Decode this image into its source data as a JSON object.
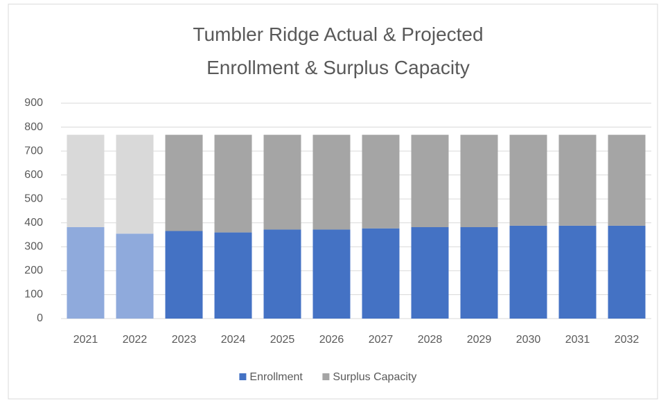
{
  "chart_data": {
    "type": "stacked_bar",
    "title": "Tumbler Ridge Actual & Projected Enrollment & Surplus Capacity",
    "categories": [
      "2021",
      "2022",
      "2023",
      "2024",
      "2025",
      "2026",
      "2027",
      "2028",
      "2029",
      "2030",
      "2031",
      "2032"
    ],
    "series": [
      {
        "name": "Enrollment",
        "color": "#4472c4",
        "colors": [
          "#8faadc",
          "#8faadc",
          "#4472c4",
          "#4472c4",
          "#4472c4",
          "#4472c4",
          "#4472c4",
          "#4472c4",
          "#4472c4",
          "#4472c4",
          "#4472c4",
          "#4472c4"
        ],
        "values": [
          382,
          355,
          366,
          360,
          372,
          372,
          377,
          382,
          382,
          388,
          388,
          388
        ]
      },
      {
        "name": "Surplus Capacity",
        "color": "#a5a5a5",
        "colors": [
          "#d9d9d9",
          "#d9d9d9",
          "#a5a5a5",
          "#a5a5a5",
          "#a5a5a5",
          "#a5a5a5",
          "#a5a5a5",
          "#a5a5a5",
          "#a5a5a5",
          "#a5a5a5",
          "#a5a5a5",
          "#a5a5a5"
        ],
        "values": [
          386,
          413,
          402,
          408,
          396,
          396,
          391,
          386,
          386,
          380,
          380,
          380
        ]
      }
    ],
    "ylim": [
      0,
      900
    ],
    "yticks": [
      0,
      100,
      200,
      300,
      400,
      500,
      600,
      700,
      800,
      900
    ],
    "grid": true,
    "legend": "bottom"
  }
}
